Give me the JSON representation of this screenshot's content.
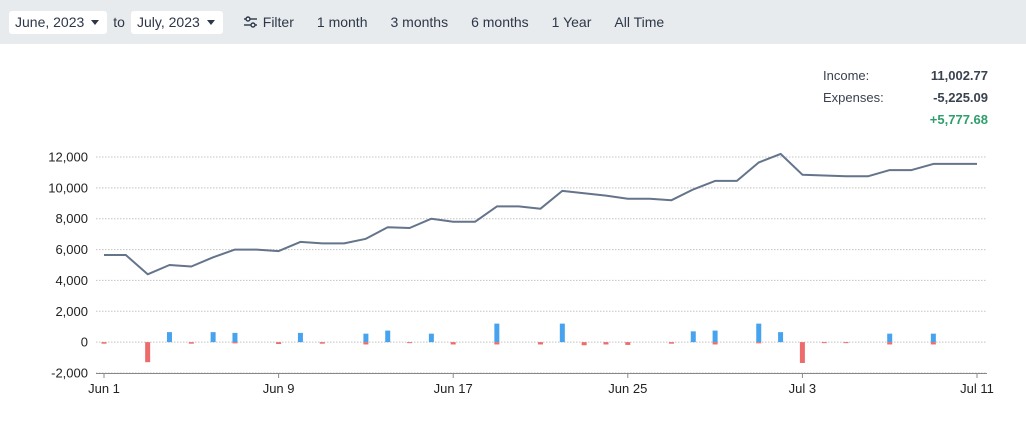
{
  "toolbar": {
    "start_date": "June, 2023",
    "to_label": "to",
    "end_date": "July, 2023",
    "filter_label": "Filter",
    "ranges": [
      "1 month",
      "3 months",
      "6 months",
      "1 Year",
      "All Time"
    ]
  },
  "summary": {
    "income_label": "Income:",
    "income_value": "11,002.77",
    "expenses_label": "Expenses:",
    "expenses_value": "-5,225.09",
    "net_value": "+5,777.68"
  },
  "colors": {
    "balance_line": "#64748b",
    "income_bar": "#47a3ee",
    "expense_bar": "#ee6b6b",
    "net_positive": "#2e9e6b"
  },
  "chart_data": {
    "type": "line",
    "ylim": [
      -2000,
      12000
    ],
    "yticks": [
      -2000,
      0,
      2000,
      4000,
      6000,
      8000,
      10000,
      12000
    ],
    "ytick_labels": [
      "-2,000",
      "0",
      "2,000",
      "4,000",
      "6,000",
      "8,000",
      "10,000",
      "12,000"
    ],
    "xtick_labels": [
      "Jun 1",
      "Jun 9",
      "Jun 17",
      "Jun 25",
      "Jul 3",
      "Jul 11"
    ],
    "xtick_days": [
      0,
      8,
      16,
      24,
      32,
      40
    ],
    "grid": true,
    "balance": {
      "x": [
        0,
        1,
        2,
        3,
        4,
        5,
        6,
        7,
        8,
        9,
        10,
        11,
        12,
        13,
        14,
        15,
        16,
        17,
        18,
        19,
        20,
        21,
        22,
        23,
        24,
        25,
        26,
        27,
        28,
        29,
        30,
        31,
        32,
        33,
        34,
        35,
        36,
        37,
        38,
        39,
        40
      ],
      "values": [
        5650,
        5650,
        4400,
        5000,
        4900,
        5500,
        6000,
        6000,
        5900,
        6500,
        6400,
        6400,
        6700,
        7450,
        7400,
        8000,
        7800,
        7800,
        8800,
        8800,
        8650,
        9800,
        9650,
        9500,
        9300,
        9300,
        9200,
        9900,
        10450,
        10450,
        11650,
        12200,
        10850,
        10800,
        10750,
        10750,
        11150,
        11150,
        11550,
        11550,
        11550
      ]
    },
    "series": [
      {
        "kind": "income",
        "x": [
          3,
          5,
          6,
          9,
          12,
          13,
          15,
          18,
          21,
          27,
          28,
          30,
          31,
          36,
          38
        ],
        "values": [
          650,
          650,
          600,
          600,
          550,
          750,
          550,
          1200,
          1200,
          700,
          750,
          1200,
          650,
          550,
          550
        ]
      },
      {
        "kind": "expenses",
        "x": [
          0,
          2,
          4,
          6,
          8,
          10,
          12,
          14,
          16,
          18,
          20,
          22,
          23,
          24,
          26,
          28,
          30,
          32,
          33,
          34,
          36,
          38
        ],
        "values": [
          -100,
          -1300,
          -100,
          -80,
          -120,
          -100,
          -150,
          -50,
          -150,
          -150,
          -150,
          -200,
          -150,
          -180,
          -100,
          -150,
          -80,
          -1350,
          -50,
          -60,
          -150,
          -150
        ]
      }
    ]
  }
}
